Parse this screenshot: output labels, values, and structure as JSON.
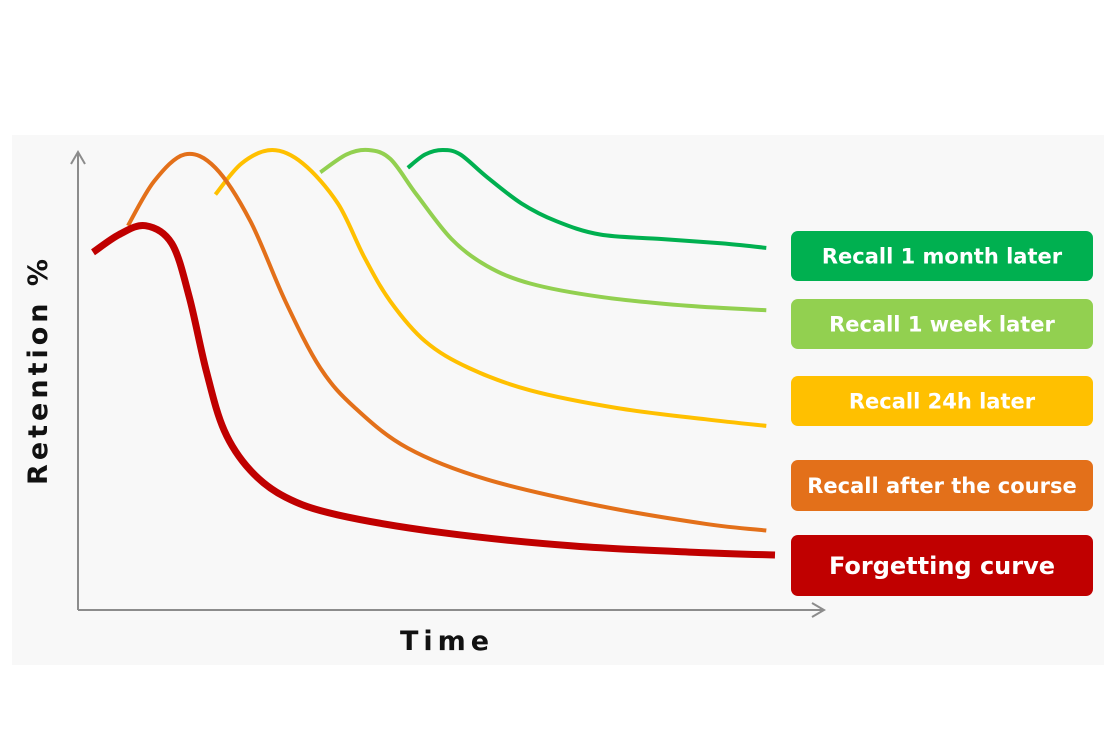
{
  "chart_data": {
    "type": "line",
    "title": "",
    "xlabel": "Time",
    "ylabel": "Retention %",
    "xlim": [
      0,
      100
    ],
    "ylim": [
      0,
      100
    ],
    "grid": false,
    "legend_placement": "right",
    "series": [
      {
        "name": "Forgetting curve",
        "color": "#C00000",
        "points": [
          [
            0,
            77
          ],
          [
            3,
            81
          ],
          [
            6,
            83
          ],
          [
            9,
            79
          ],
          [
            11,
            67
          ],
          [
            13,
            50
          ],
          [
            15,
            37
          ],
          [
            18,
            28
          ],
          [
            22,
            22
          ],
          [
            28,
            18
          ],
          [
            40,
            14
          ],
          [
            55,
            11
          ],
          [
            70,
            9.5
          ],
          [
            78,
            9
          ]
        ]
      },
      {
        "name": "Recall after the course",
        "color": "#E3701A",
        "points": [
          [
            4,
            83
          ],
          [
            7,
            93
          ],
          [
            10.5,
            99
          ],
          [
            14,
            96
          ],
          [
            18,
            84
          ],
          [
            22,
            66
          ],
          [
            26,
            51
          ],
          [
            30,
            42
          ],
          [
            36,
            33
          ],
          [
            45,
            26
          ],
          [
            58,
            20
          ],
          [
            70,
            16
          ],
          [
            77,
            14.5
          ]
        ]
      },
      {
        "name": "Recall 24h later",
        "color": "#FFC000",
        "points": [
          [
            14,
            90
          ],
          [
            17,
            97
          ],
          [
            20.5,
            100
          ],
          [
            24,
            97
          ],
          [
            28,
            88
          ],
          [
            31,
            76
          ],
          [
            34,
            66
          ],
          [
            38,
            57
          ],
          [
            43,
            51
          ],
          [
            50,
            46
          ],
          [
            60,
            42
          ],
          [
            70,
            39.5
          ],
          [
            77,
            38
          ]
        ]
      },
      {
        "name": "Recall 1 week later",
        "color": "#92D050",
        "points": [
          [
            26,
            95
          ],
          [
            29,
            99
          ],
          [
            31.5,
            100
          ],
          [
            34,
            98
          ],
          [
            37,
            90
          ],
          [
            41,
            80
          ],
          [
            45,
            74
          ],
          [
            50,
            70
          ],
          [
            58,
            67
          ],
          [
            68,
            65
          ],
          [
            77,
            64
          ]
        ]
      },
      {
        "name": "Recall 1 month later",
        "color": "#00B050",
        "points": [
          [
            36,
            96
          ],
          [
            38,
            99
          ],
          [
            40,
            100
          ],
          [
            42,
            99
          ],
          [
            45,
            94
          ],
          [
            49,
            88
          ],
          [
            53,
            84
          ],
          [
            58,
            81
          ],
          [
            65,
            80
          ],
          [
            72,
            79
          ],
          [
            77,
            78
          ]
        ]
      }
    ],
    "legend": [
      {
        "label": "Recall 1 month later",
        "color": "#00B050"
      },
      {
        "label": "Recall 1 week later",
        "color": "#92D050"
      },
      {
        "label": "Recall 24h later",
        "color": "#FFC000"
      },
      {
        "label": "Recall after the course",
        "color": "#E3701A"
      },
      {
        "label": "Forgetting curve",
        "color": "#C00000"
      }
    ]
  }
}
